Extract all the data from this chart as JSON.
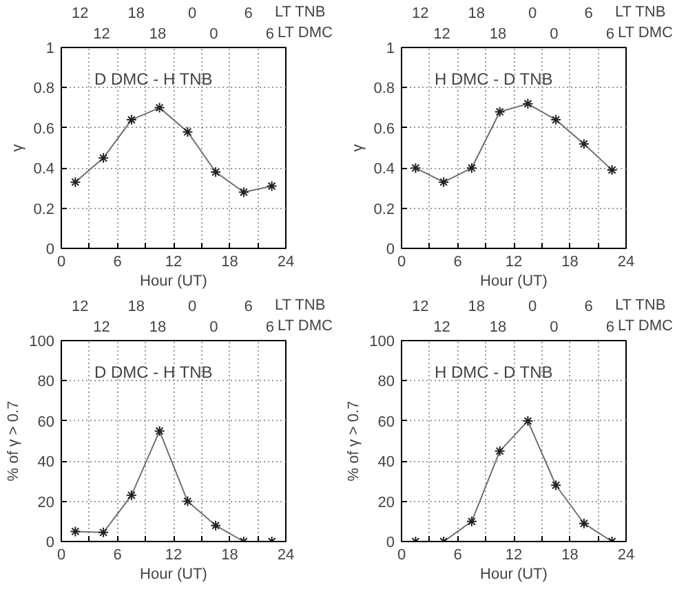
{
  "chart_data": [
    {
      "type": "line",
      "title": "D DMC - H TNB",
      "xlabel": "Hour (UT)",
      "ylabel": "γ",
      "x": [
        1.5,
        4.5,
        7.5,
        10.5,
        13.5,
        16.5,
        19.5,
        22.5
      ],
      "series": [
        {
          "color": "#707070",
          "values": [
            0.33,
            0.45,
            0.64,
            0.7,
            0.58,
            0.38,
            0.28,
            0.31
          ]
        }
      ],
      "xlim": [
        0,
        24
      ],
      "xticks": [
        0,
        {
          "value": 3,
          "label": null
        },
        6,
        {
          "value": 9,
          "label": null
        },
        12,
        {
          "value": 15,
          "label": null
        },
        18,
        {
          "value": 21,
          "label": null
        },
        24
      ],
      "ylim": [
        0,
        1
      ],
      "yticks": [
        0,
        0.2,
        0.4,
        0.6,
        0.8,
        1
      ],
      "annotations": [
        "12",
        "18",
        "0",
        "6",
        "LT TNB",
        "12",
        "18",
        "0",
        "6",
        "LT DMC"
      ],
      "grid": true,
      "marker": "cross",
      "line_style": "solid"
    },
    {
      "type": "line",
      "title": "H DMC - D TNB",
      "xlabel": "Hour (UT)",
      "ylabel": "γ",
      "x": [
        1.5,
        4.5,
        7.5,
        10.5,
        13.5,
        16.5,
        19.5,
        22.5
      ],
      "series": [
        {
          "color": "#707070",
          "values": [
            0.4,
            0.33,
            0.4,
            0.68,
            0.72,
            0.64,
            0.52,
            0.39
          ]
        }
      ],
      "xlim": [
        0,
        24
      ],
      "xticks": [
        0,
        {
          "value": 3,
          "label": null
        },
        6,
        {
          "value": 9,
          "label": null
        },
        12,
        {
          "value": 15,
          "label": null
        },
        18,
        {
          "value": 21,
          "label": null
        },
        24
      ],
      "ylim": [
        0,
        1
      ],
      "yticks": [
        0,
        0.2,
        0.4,
        0.6,
        0.8,
        1
      ],
      "annotations": [
        "12",
        "18",
        "0",
        "6",
        "LT TNB",
        "12",
        "18",
        "0",
        "6",
        "LT DMC"
      ],
      "grid": true,
      "marker": "cross",
      "line_style": "solid"
    },
    {
      "type": "line",
      "title": "D DMC - H TNB",
      "xlabel": "Hour (UT)",
      "ylabel": "% of γ > 0.7",
      "x": [
        1.5,
        4.5,
        7.5,
        10.5,
        13.5,
        16.5,
        19.5,
        22.5
      ],
      "series": [
        {
          "color": "#707070",
          "values": [
            5,
            4.5,
            23,
            55,
            20,
            8,
            0,
            0
          ]
        }
      ],
      "xlim": [
        0,
        24
      ],
      "xticks": [
        0,
        {
          "value": 3,
          "label": null
        },
        6,
        {
          "value": 9,
          "label": null
        },
        12,
        {
          "value": 15,
          "label": null
        },
        18,
        {
          "value": 21,
          "label": null
        },
        24
      ],
      "ylim": [
        0,
        100
      ],
      "yticks": [
        0,
        20,
        40,
        60,
        80,
        100
      ],
      "annotations": [
        "12",
        "18",
        "0",
        "6",
        "LT TNB",
        "12",
        "18",
        "0",
        "6",
        "LT DMC"
      ],
      "grid": true,
      "marker": "cross",
      "line_style": "solid"
    },
    {
      "type": "line",
      "title": "H DMC - D TNB",
      "xlabel": "Hour (UT)",
      "ylabel": "% of γ > 0.7",
      "x": [
        1.5,
        4.5,
        7.5,
        10.5,
        13.5,
        16.5,
        19.5,
        22.5
      ],
      "series": [
        {
          "color": "#707070",
          "values": [
            0,
            0,
            10,
            45,
            60,
            28,
            9,
            0
          ]
        }
      ],
      "xlim": [
        0,
        24
      ],
      "xticks": [
        0,
        {
          "value": 3,
          "label": null
        },
        6,
        {
          "value": 9,
          "label": null
        },
        12,
        {
          "value": 15,
          "label": null
        },
        18,
        {
          "value": 21,
          "label": null
        },
        24
      ],
      "ylim": [
        0,
        100
      ],
      "yticks": [
        0,
        20,
        40,
        60,
        80,
        100
      ],
      "annotations": [
        "12",
        "18",
        "0",
        "6",
        "LT TNB",
        "12",
        "18",
        "0",
        "6",
        "LT DMC"
      ],
      "grid": true,
      "marker": "cross",
      "line_style": "solid"
    }
  ]
}
